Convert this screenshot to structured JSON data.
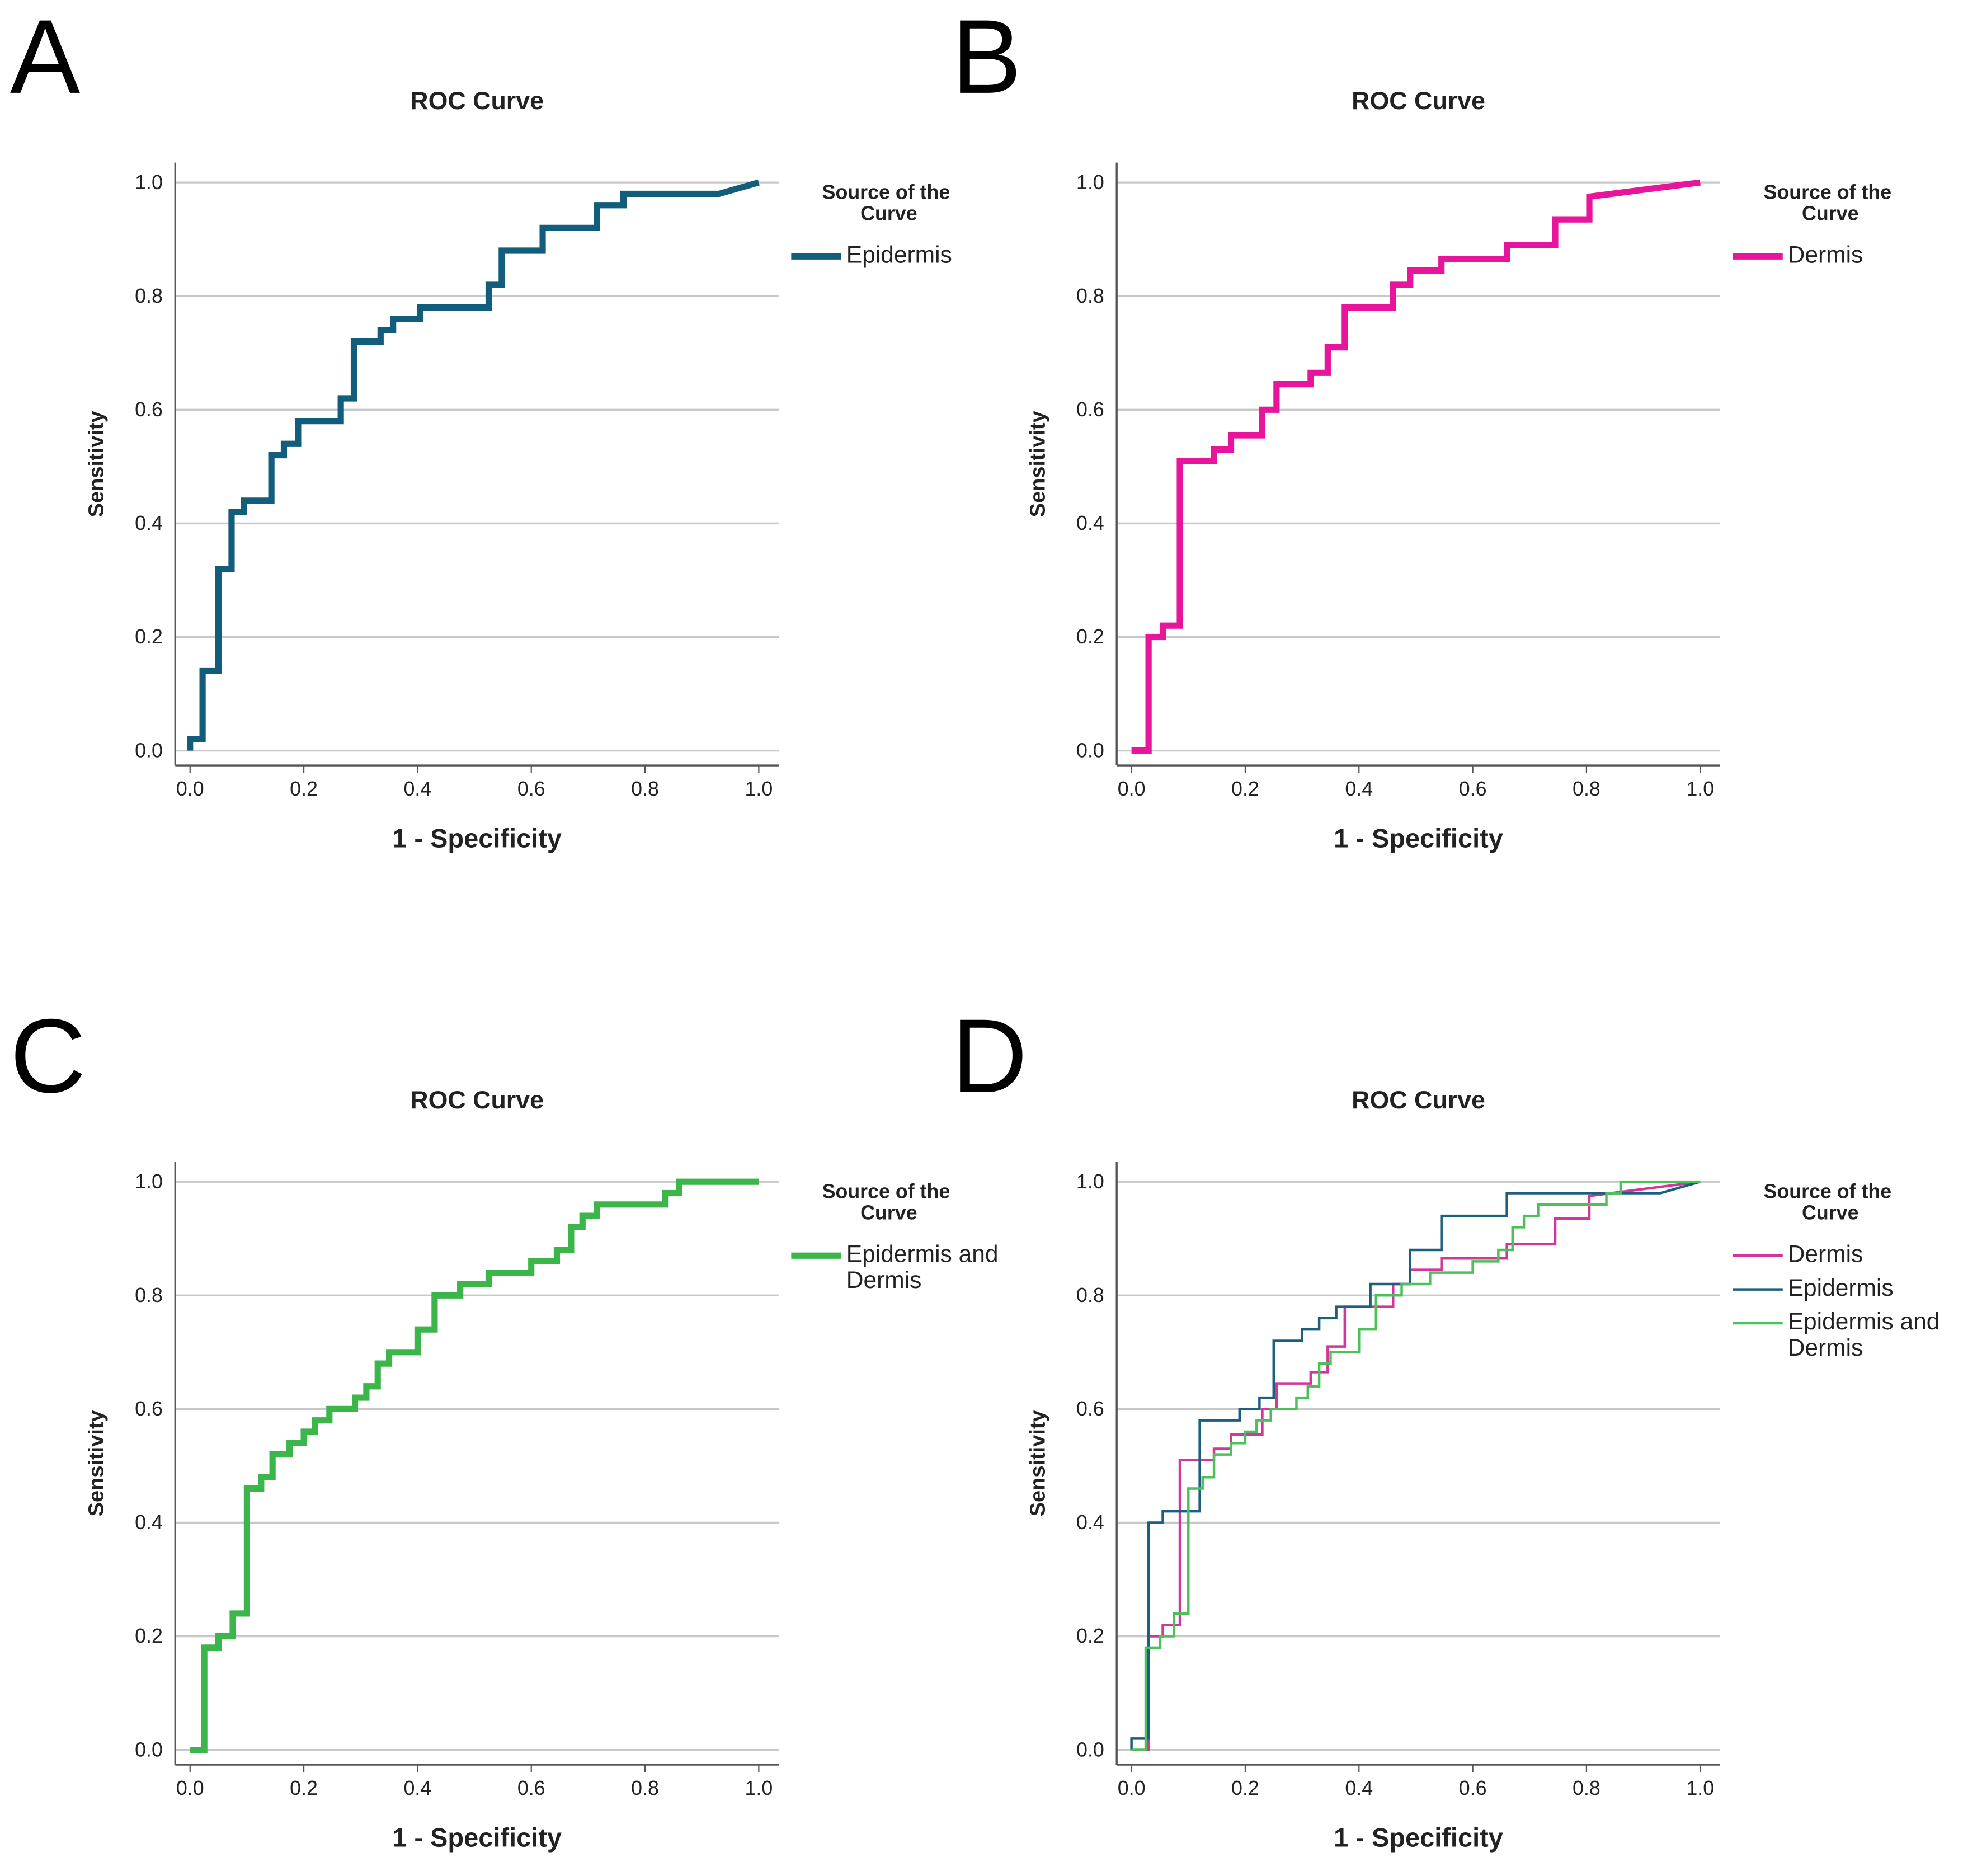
{
  "chart_data": [
    {
      "type": "line",
      "panel_label": "A",
      "title": "ROC Curve",
      "x_label": "1 - Specificity",
      "y_label": "Sensitivity",
      "legend_title": "Source of the Curve",
      "legend": "right",
      "grid": true,
      "xlim": [
        -0.026,
        1.035
      ],
      "ylim": [
        -0.026,
        1.035
      ],
      "xticks": [
        {
          "value": 0,
          "label": "0.0"
        },
        {
          "value": 0.2,
          "label": "0.2"
        },
        {
          "value": 0.4,
          "label": "0.4"
        },
        {
          "value": 0.6,
          "label": "0.6"
        },
        {
          "value": 0.8,
          "label": "0.8"
        },
        {
          "value": 1,
          "label": "1.0"
        }
      ],
      "yticks": [
        {
          "value": 0,
          "label": "0.0"
        },
        {
          "value": 0.2,
          "label": "0.2"
        },
        {
          "value": 0.4,
          "label": "0.4"
        },
        {
          "value": 0.6,
          "label": "0.6"
        },
        {
          "value": 0.8,
          "label": "0.8"
        },
        {
          "value": 1,
          "label": "1.0"
        }
      ],
      "series": [
        {
          "name": "Epidermis",
          "color": "#135d7c",
          "x": [
            0,
            0,
            0.022,
            0.022,
            0.05,
            0.05,
            0.073,
            0.073,
            0.095,
            0.095,
            0.143,
            0.143,
            0.165,
            0.165,
            0.19,
            0.19,
            0.265,
            0.265,
            0.288,
            0.288,
            0.335,
            0.335,
            0.357,
            0.357,
            0.405,
            0.405,
            0.525,
            0.525,
            0.548,
            0.548,
            0.62,
            0.62,
            0.715,
            0.715,
            0.762,
            0.762,
            0.93,
            1
          ],
          "values": [
            0,
            0.02,
            0.02,
            0.14,
            0.14,
            0.32,
            0.32,
            0.42,
            0.42,
            0.44,
            0.44,
            0.52,
            0.52,
            0.54,
            0.54,
            0.58,
            0.58,
            0.62,
            0.62,
            0.72,
            0.72,
            0.74,
            0.74,
            0.76,
            0.76,
            0.78,
            0.78,
            0.82,
            0.82,
            0.88,
            0.88,
            0.92,
            0.92,
            0.96,
            0.96,
            0.98,
            0.98,
            1
          ]
        }
      ]
    },
    {
      "type": "line",
      "panel_label": "B",
      "title": "ROC Curve",
      "x_label": "1 - Specificity",
      "y_label": "Sensitivity",
      "legend_title": "Source of the Curve",
      "legend": "right",
      "grid": true,
      "xlim": [
        -0.026,
        1.035
      ],
      "ylim": [
        -0.026,
        1.035
      ],
      "xticks": [
        {
          "value": 0,
          "label": "0.0"
        },
        {
          "value": 0.2,
          "label": "0.2"
        },
        {
          "value": 0.4,
          "label": "0.4"
        },
        {
          "value": 0.6,
          "label": "0.6"
        },
        {
          "value": 0.8,
          "label": "0.8"
        },
        {
          "value": 1,
          "label": "1.0"
        }
      ],
      "yticks": [
        {
          "value": 0,
          "label": "0.0"
        },
        {
          "value": 0.2,
          "label": "0.2"
        },
        {
          "value": 0.4,
          "label": "0.4"
        },
        {
          "value": 0.6,
          "label": "0.6"
        },
        {
          "value": 0.8,
          "label": "0.8"
        },
        {
          "value": 1,
          "label": "1.0"
        }
      ],
      "series": [
        {
          "name": "Dermis",
          "color": "#e6159b",
          "x": [
            0,
            0.03,
            0.03,
            0.055,
            0.055,
            0.085,
            0.085,
            0.145,
            0.145,
            0.175,
            0.175,
            0.23,
            0.23,
            0.255,
            0.255,
            0.315,
            0.315,
            0.345,
            0.345,
            0.375,
            0.375,
            0.46,
            0.46,
            0.49,
            0.49,
            0.545,
            0.545,
            0.66,
            0.66,
            0.745,
            0.745,
            0.805,
            0.805,
            1
          ],
          "values": [
            0,
            0,
            0.2,
            0.2,
            0.22,
            0.22,
            0.51,
            0.51,
            0.53,
            0.53,
            0.555,
            0.555,
            0.6,
            0.6,
            0.645,
            0.645,
            0.665,
            0.665,
            0.71,
            0.71,
            0.78,
            0.78,
            0.82,
            0.82,
            0.845,
            0.845,
            0.865,
            0.865,
            0.89,
            0.89,
            0.935,
            0.935,
            0.975,
            1
          ]
        }
      ]
    },
    {
      "type": "line",
      "panel_label": "C",
      "title": "ROC Curve",
      "x_label": "1 - Specificity",
      "y_label": "Sensitivity",
      "legend_title": "Source of the Curve",
      "legend": "right",
      "grid": true,
      "xlim": [
        -0.026,
        1.035
      ],
      "ylim": [
        -0.026,
        1.035
      ],
      "xticks": [
        {
          "value": 0,
          "label": "0.0"
        },
        {
          "value": 0.2,
          "label": "0.2"
        },
        {
          "value": 0.4,
          "label": "0.4"
        },
        {
          "value": 0.6,
          "label": "0.6"
        },
        {
          "value": 0.8,
          "label": "0.8"
        },
        {
          "value": 1,
          "label": "1.0"
        }
      ],
      "yticks": [
        {
          "value": 0,
          "label": "0.0"
        },
        {
          "value": 0.2,
          "label": "0.2"
        },
        {
          "value": 0.4,
          "label": "0.4"
        },
        {
          "value": 0.6,
          "label": "0.6"
        },
        {
          "value": 0.8,
          "label": "0.8"
        },
        {
          "value": 1,
          "label": "1.0"
        }
      ],
      "series": [
        {
          "name": "Epidermis and Dermis",
          "color": "#3cb54a",
          "x": [
            0,
            0.025,
            0.025,
            0.05,
            0.05,
            0.075,
            0.075,
            0.1,
            0.1,
            0.125,
            0.125,
            0.145,
            0.145,
            0.175,
            0.175,
            0.2,
            0.2,
            0.22,
            0.22,
            0.245,
            0.245,
            0.29,
            0.29,
            0.31,
            0.31,
            0.33,
            0.33,
            0.35,
            0.35,
            0.4,
            0.4,
            0.43,
            0.43,
            0.475,
            0.475,
            0.525,
            0.525,
            0.6,
            0.6,
            0.645,
            0.645,
            0.67,
            0.67,
            0.69,
            0.69,
            0.715,
            0.715,
            0.835,
            0.835,
            0.86,
            0.86,
            1
          ],
          "values": [
            0,
            0,
            0.18,
            0.18,
            0.2,
            0.2,
            0.24,
            0.24,
            0.46,
            0.46,
            0.48,
            0.48,
            0.52,
            0.52,
            0.54,
            0.54,
            0.56,
            0.56,
            0.58,
            0.58,
            0.6,
            0.6,
            0.62,
            0.62,
            0.64,
            0.64,
            0.68,
            0.68,
            0.7,
            0.7,
            0.74,
            0.74,
            0.8,
            0.8,
            0.82,
            0.82,
            0.84,
            0.84,
            0.86,
            0.86,
            0.88,
            0.88,
            0.92,
            0.92,
            0.94,
            0.94,
            0.96,
            0.96,
            0.98,
            0.98,
            1,
            1
          ]
        }
      ]
    },
    {
      "type": "line",
      "panel_label": "D",
      "title": "ROC Curve",
      "x_label": "1 - Specificity",
      "y_label": "Sensitivity",
      "legend_title": "Source of the Curve",
      "legend": "right",
      "grid": true,
      "xlim": [
        -0.026,
        1.035
      ],
      "ylim": [
        -0.026,
        1.035
      ],
      "xticks": [
        {
          "value": 0,
          "label": "0.0"
        },
        {
          "value": 0.2,
          "label": "0.2"
        },
        {
          "value": 0.4,
          "label": "0.4"
        },
        {
          "value": 0.6,
          "label": "0.6"
        },
        {
          "value": 0.8,
          "label": "0.8"
        },
        {
          "value": 1,
          "label": "1.0"
        }
      ],
      "yticks": [
        {
          "value": 0,
          "label": "0.0"
        },
        {
          "value": 0.2,
          "label": "0.2"
        },
        {
          "value": 0.4,
          "label": "0.4"
        },
        {
          "value": 0.6,
          "label": "0.6"
        },
        {
          "value": 0.8,
          "label": "0.8"
        },
        {
          "value": 1,
          "label": "1.0"
        }
      ],
      "series": [
        {
          "name": "Dermis",
          "color": "#d4359b",
          "x": [
            0,
            0.03,
            0.03,
            0.055,
            0.055,
            0.085,
            0.085,
            0.145,
            0.145,
            0.175,
            0.175,
            0.23,
            0.23,
            0.255,
            0.255,
            0.315,
            0.315,
            0.345,
            0.345,
            0.375,
            0.375,
            0.46,
            0.46,
            0.49,
            0.49,
            0.545,
            0.545,
            0.66,
            0.66,
            0.745,
            0.745,
            0.805,
            0.805,
            1
          ],
          "values": [
            0,
            0,
            0.2,
            0.2,
            0.22,
            0.22,
            0.51,
            0.51,
            0.53,
            0.53,
            0.555,
            0.555,
            0.6,
            0.6,
            0.645,
            0.645,
            0.665,
            0.665,
            0.71,
            0.71,
            0.78,
            0.78,
            0.82,
            0.82,
            0.845,
            0.845,
            0.865,
            0.865,
            0.89,
            0.89,
            0.935,
            0.935,
            0.975,
            1
          ]
        },
        {
          "name": "Epidermis",
          "color": "#1d5f7f",
          "x": [
            0,
            0,
            0.03,
            0.03,
            0.055,
            0.055,
            0.085,
            0.085,
            0.12,
            0.12,
            0.19,
            0.19,
            0.225,
            0.225,
            0.25,
            0.25,
            0.3,
            0.3,
            0.33,
            0.33,
            0.36,
            0.36,
            0.42,
            0.42,
            0.49,
            0.49,
            0.545,
            0.545,
            0.66,
            0.66,
            0.93,
            1
          ],
          "values": [
            0,
            0.02,
            0.02,
            0.4,
            0.4,
            0.42,
            0.42,
            0.42,
            0.42,
            0.58,
            0.58,
            0.6,
            0.6,
            0.62,
            0.62,
            0.72,
            0.72,
            0.74,
            0.74,
            0.76,
            0.76,
            0.78,
            0.78,
            0.82,
            0.82,
            0.88,
            0.88,
            0.94,
            0.94,
            0.98,
            0.98,
            1
          ]
        },
        {
          "name": "Epidermis and Dermis",
          "color": "#4cc159",
          "x": [
            0,
            0.025,
            0.025,
            0.05,
            0.05,
            0.075,
            0.075,
            0.1,
            0.1,
            0.125,
            0.125,
            0.145,
            0.145,
            0.175,
            0.175,
            0.2,
            0.2,
            0.22,
            0.22,
            0.245,
            0.245,
            0.29,
            0.29,
            0.31,
            0.31,
            0.33,
            0.33,
            0.35,
            0.35,
            0.4,
            0.4,
            0.43,
            0.43,
            0.475,
            0.475,
            0.525,
            0.525,
            0.6,
            0.6,
            0.645,
            0.645,
            0.67,
            0.67,
            0.69,
            0.69,
            0.715,
            0.715,
            0.835,
            0.835,
            0.86,
            0.86,
            1
          ],
          "values": [
            0,
            0,
            0.18,
            0.18,
            0.2,
            0.2,
            0.24,
            0.24,
            0.46,
            0.46,
            0.48,
            0.48,
            0.52,
            0.52,
            0.54,
            0.54,
            0.56,
            0.56,
            0.58,
            0.58,
            0.6,
            0.6,
            0.62,
            0.62,
            0.64,
            0.64,
            0.68,
            0.68,
            0.7,
            0.7,
            0.74,
            0.74,
            0.8,
            0.8,
            0.82,
            0.82,
            0.84,
            0.84,
            0.86,
            0.86,
            0.88,
            0.88,
            0.92,
            0.92,
            0.94,
            0.94,
            0.96,
            0.96,
            0.98,
            0.98,
            1,
            1
          ]
        }
      ]
    }
  ]
}
